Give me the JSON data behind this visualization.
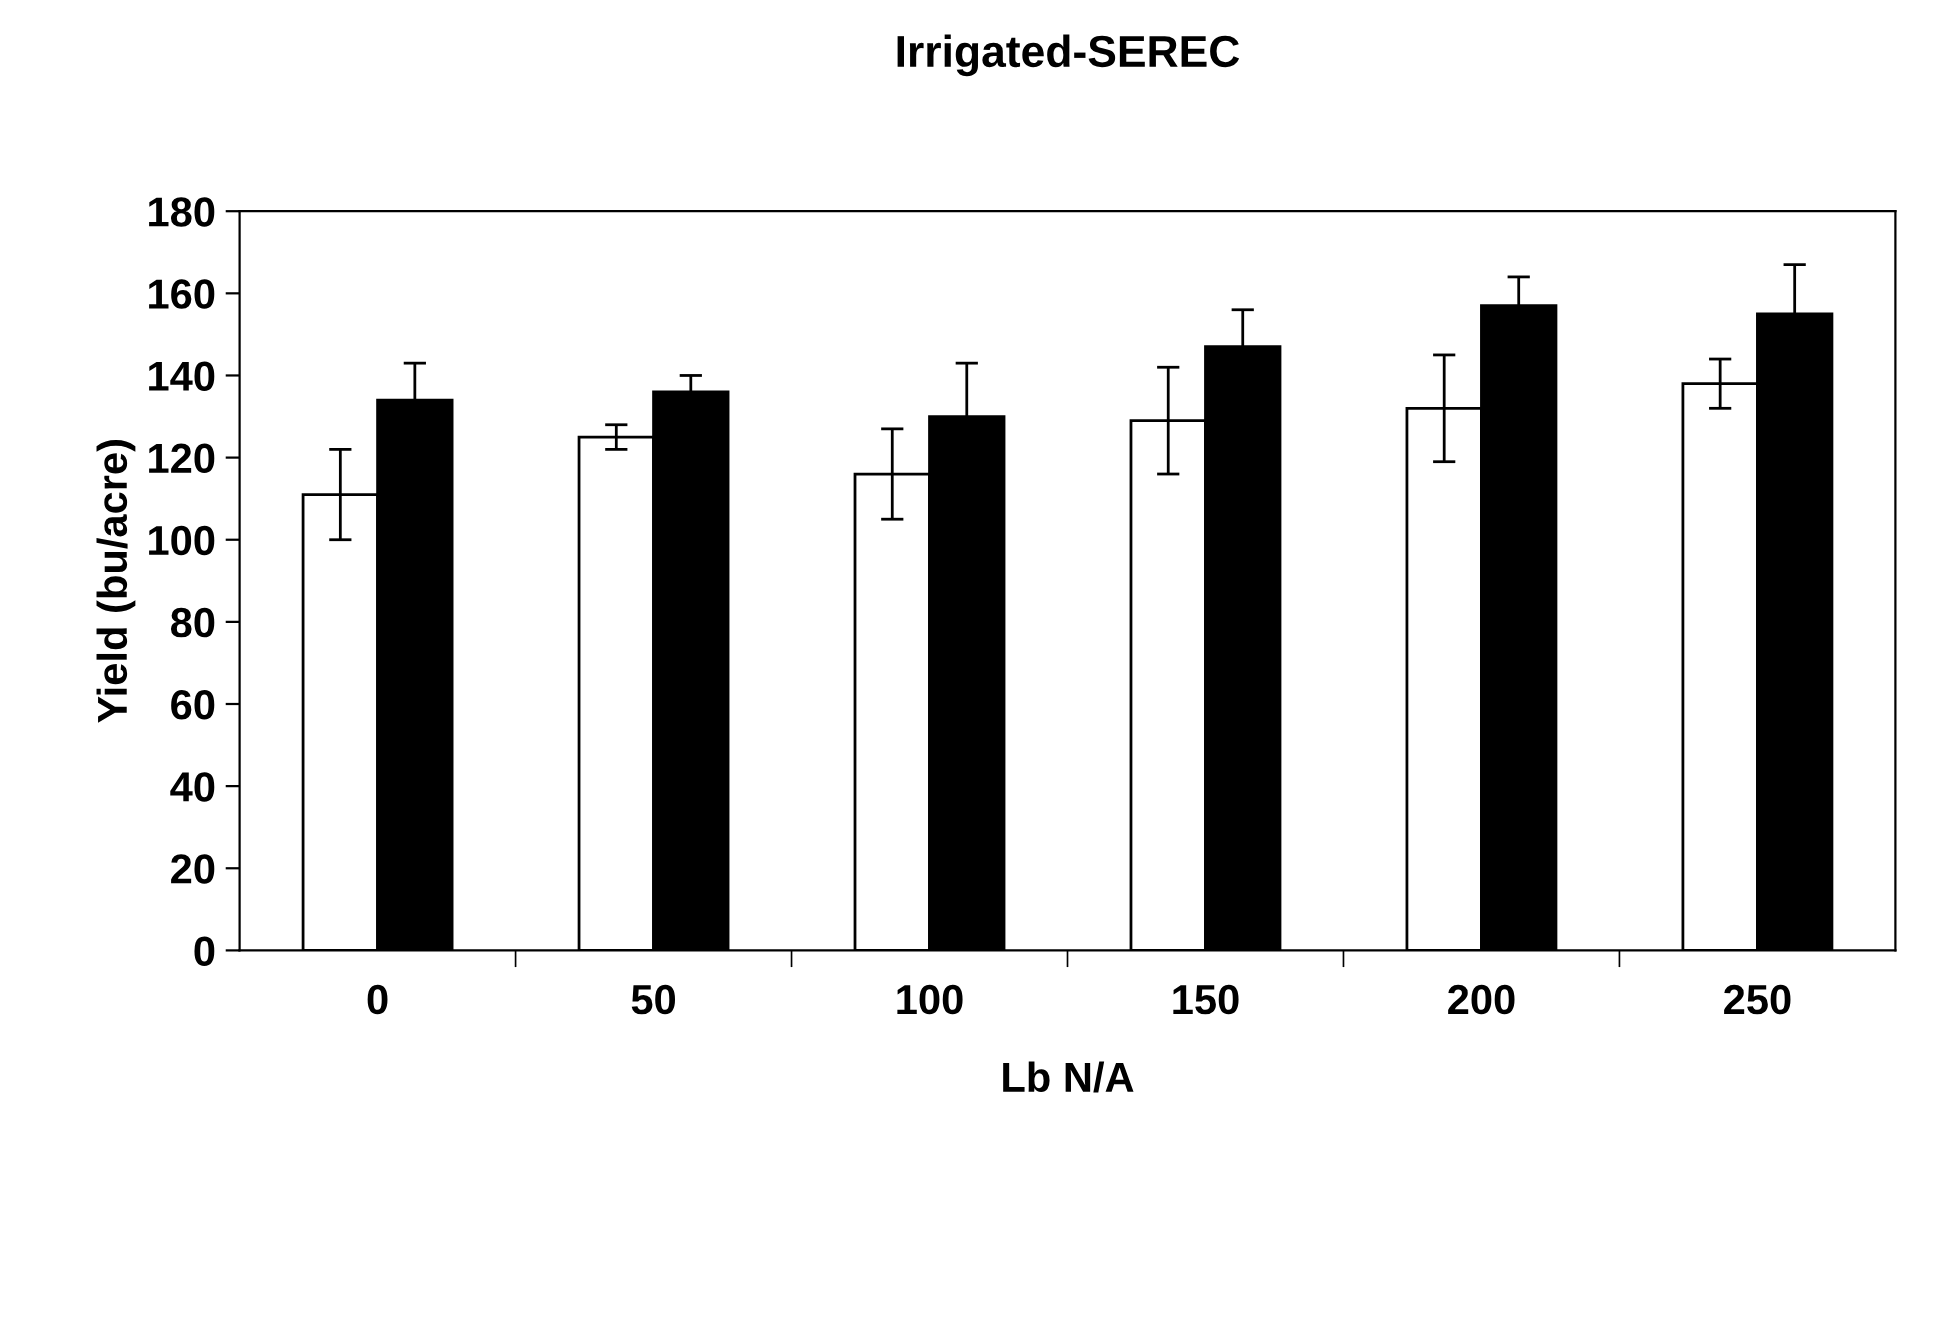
{
  "chart_data": {
    "type": "bar",
    "title": "Irrigated-SEREC",
    "xlabel": "Lb N/A",
    "ylabel": "Yield (bu/acre)",
    "categories": [
      "0",
      "50",
      "100",
      "150",
      "200",
      "250"
    ],
    "series": [
      {
        "color": "#ffffff",
        "values": [
          111,
          125,
          116,
          129,
          132,
          138
        ],
        "errors": [
          11,
          3,
          11,
          13,
          13,
          6
        ]
      },
      {
        "color": "#000000",
        "values": [
          134,
          136,
          130,
          147,
          157,
          155
        ],
        "errors": [
          9,
          4,
          13,
          9,
          7,
          12
        ]
      }
    ],
    "ylim": [
      0,
      180
    ],
    "yticks": [
      0,
      20,
      40,
      60,
      80,
      100,
      120,
      140,
      160,
      180
    ],
    "grid": false
  }
}
